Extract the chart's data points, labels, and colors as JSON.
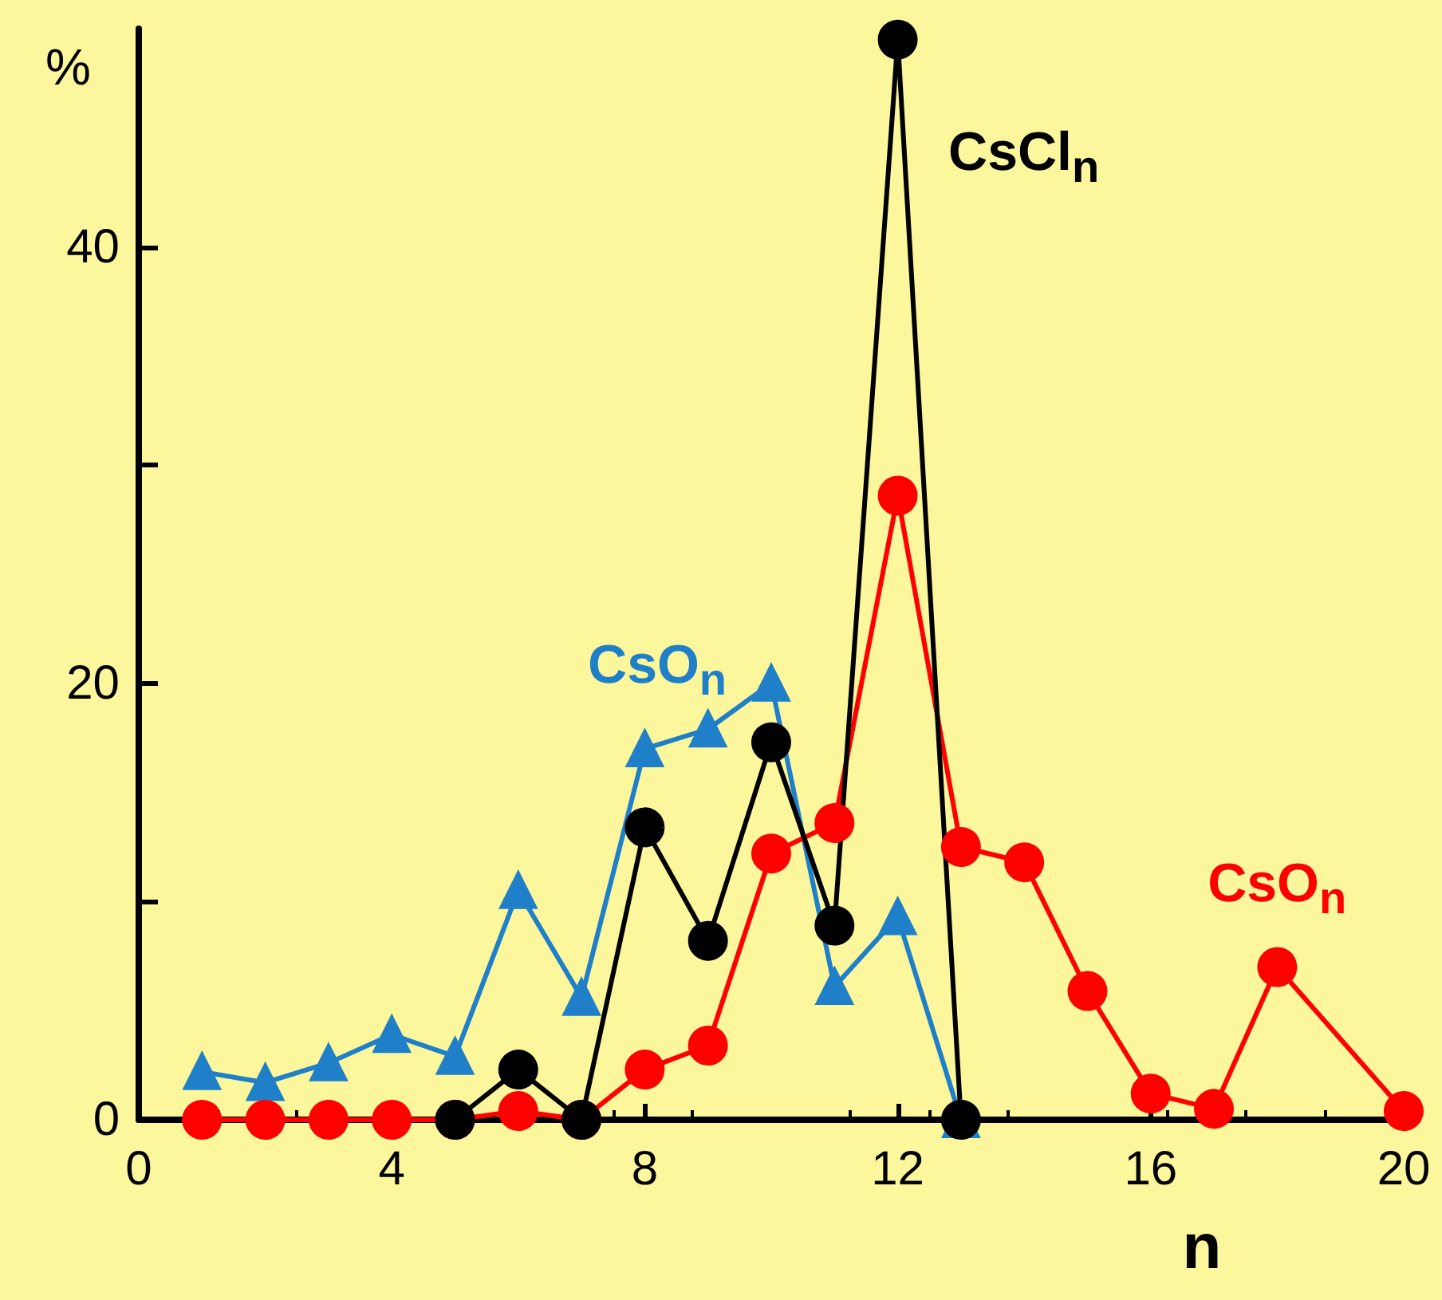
{
  "chart_data": {
    "type": "line",
    "xlabel": "n",
    "ylabel": "%",
    "xlim": [
      0,
      20
    ],
    "xticks": [
      0,
      4,
      8,
      12,
      16,
      20
    ],
    "ylim": [
      0,
      50
    ],
    "yticks": [
      0,
      {
        "value": 10,
        "label": null
      },
      20,
      {
        "value": 30,
        "label": null
      },
      40
    ],
    "grid": false,
    "legend": false,
    "series": [
      {
        "name": "CsO$_{n}$",
        "color": "#1f7fc8",
        "marker": "triangle",
        "x": [
          1,
          2,
          3,
          4,
          5,
          6,
          7,
          8,
          9,
          10,
          11,
          12,
          13
        ],
        "values": [
          2.2,
          1.7,
          2.6,
          3.9,
          2.9,
          10.5,
          5.6,
          17,
          17.9,
          20,
          6.1,
          9.3,
          0
        ]
      },
      {
        "name": "CsO$_{n}$",
        "color": "#ff0000",
        "marker": "circle",
        "x": [
          1,
          2,
          3,
          4,
          5,
          6,
          7,
          8,
          9,
          10,
          11,
          12,
          13,
          14,
          15,
          16,
          17,
          18,
          20
        ],
        "values": [
          0,
          0,
          0,
          0,
          0,
          0.4,
          0,
          2.3,
          3.4,
          12.2,
          13.6,
          28.6,
          12.5,
          11.8,
          5.9,
          1.2,
          0.5,
          7,
          0.4
        ]
      },
      {
        "name": "CsCl$_{n}$",
        "color": "#000000",
        "marker": "circle",
        "x": [
          5,
          6,
          7,
          8,
          9,
          10,
          11,
          12,
          13
        ],
        "values": [
          0,
          2.3,
          0,
          13.4,
          8.2,
          17.3,
          8.9,
          49.5,
          0
        ]
      }
    ]
  }
}
